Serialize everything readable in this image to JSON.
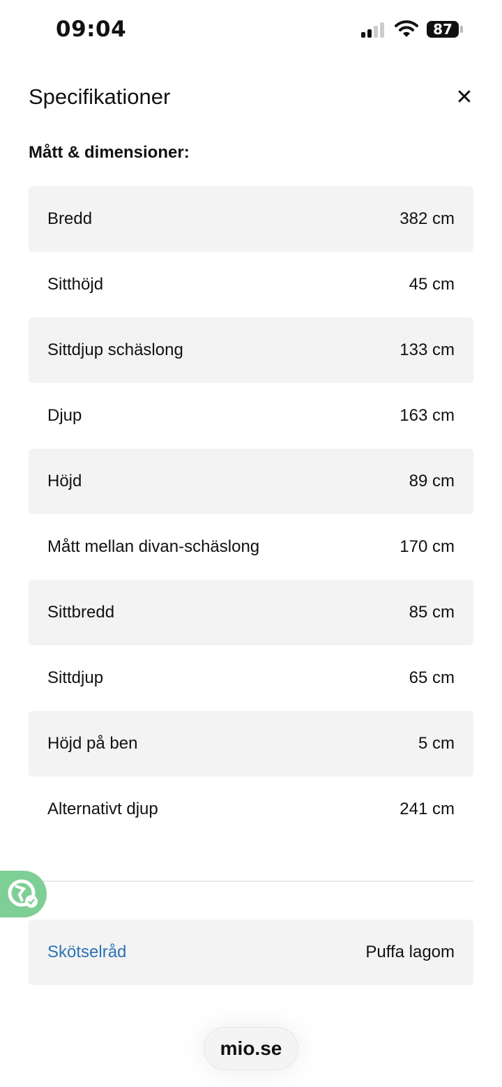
{
  "status_bar": {
    "time": "09:04",
    "battery": "87"
  },
  "header": {
    "title": "Specifikationer",
    "close_icon": "close-icon"
  },
  "section": {
    "title": "Mått & dimensioner:"
  },
  "specs": [
    {
      "label": "Bredd",
      "value": "382 cm"
    },
    {
      "label": "Sitthöjd",
      "value": "45 cm"
    },
    {
      "label": "Sittdjup schäslong",
      "value": "133 cm"
    },
    {
      "label": "Djup",
      "value": "163 cm"
    },
    {
      "label": "Höjd",
      "value": "89 cm"
    },
    {
      "label": "Mått mellan divan-schäslong",
      "value": "170 cm"
    },
    {
      "label": "Sittbredd",
      "value": "85 cm"
    },
    {
      "label": "Sittdjup",
      "value": "65 cm"
    },
    {
      "label": "Höjd på ben",
      "value": "5 cm"
    },
    {
      "label": "Alternativt djup",
      "value": "241 cm"
    }
  ],
  "care": {
    "label": "Skötselråd",
    "value": "Puffa lagom"
  },
  "browser": {
    "url": "mio.se"
  },
  "colors": {
    "link": "#2b73b5",
    "badge": "#7ecf95",
    "row_alt": "#f3f3f3"
  }
}
